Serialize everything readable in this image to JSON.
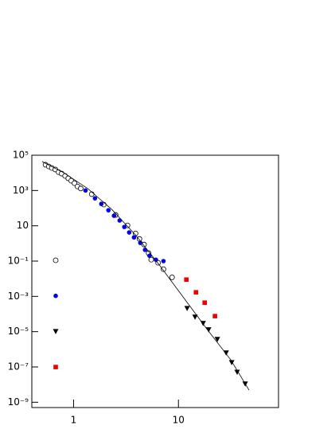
{
  "chart_data": {
    "type": "scatter",
    "xscale": "log",
    "yscale": "log",
    "xlim": [
      0.4,
      90
    ],
    "ylim": [
      5e-10,
      100000
    ],
    "xticks": [
      1,
      10
    ],
    "yticks": [
      {
        "value": 100000,
        "label": "10⁵"
      },
      {
        "value": 1000,
        "label": "10³"
      },
      10,
      {
        "value": 0.1,
        "label": "10⁻¹"
      },
      {
        "value": 0.001,
        "label": "10⁻³"
      },
      {
        "value": 1e-05,
        "label": "10⁻⁵"
      },
      {
        "value": 1e-07,
        "label": "10⁻⁷"
      },
      {
        "value": 1e-09,
        "label": "10⁻⁹"
      }
    ],
    "legend": "left",
    "series": [
      {
        "marker": "circle-open",
        "color": "#000000",
        "x": [
          0.54,
          0.58,
          0.62,
          0.67,
          0.72,
          0.77,
          0.83,
          0.89,
          0.95,
          1.02,
          1.09,
          1.17,
          1.49,
          1.94,
          2.52,
          3.27,
          3.9,
          4.25,
          4.7,
          5.2,
          5.5,
          6.4,
          7.2,
          8.7
        ],
        "values": [
          29000,
          23000,
          19000,
          15500,
          11000,
          9100,
          6700,
          4900,
          3600,
          2600,
          1700,
          1300,
          620,
          160,
          41,
          10.6,
          3.7,
          1.8,
          0.87,
          0.28,
          0.12,
          0.08,
          0.035,
          0.012
        ]
      },
      {
        "marker": "circle",
        "color": "#0000ee",
        "x": [
          1.3,
          1.6,
          1.84,
          2.15,
          2.43,
          2.75,
          3.05,
          3.39,
          3.77,
          4.33,
          4.8,
          5.3,
          6.1,
          7.2
        ],
        "values": [
          1000,
          360,
          175,
          76,
          37,
          20,
          8.6,
          4.2,
          2.2,
          1.07,
          0.43,
          0.2,
          0.12,
          0.1
        ]
      },
      {
        "marker": "triangle-down",
        "color": "#000000",
        "x": [
          12.1,
          14.4,
          17.2,
          19.4,
          23.5,
          28.5,
          32.2,
          36.3,
          43.3
        ],
        "values": [
          0.00021,
          6.8e-05,
          3e-05,
          1.3e-05,
          3.7e-06,
          6.3e-07,
          1.8e-07,
          5.1e-08,
          1.1e-08
        ]
      },
      {
        "marker": "square",
        "color": "#ee0000",
        "x": [
          11.9,
          14.7,
          17.8,
          22.3
        ],
        "values": [
          0.0089,
          0.0017,
          0.00044,
          7.6e-05
        ]
      },
      {
        "marker": "line",
        "color": "#000000",
        "x": [
          0.5,
          0.81,
          1.37,
          2.31,
          3.9,
          6.6,
          11.1,
          18.7,
          31.6,
          47.2
        ],
        "values": [
          44000,
          10000,
          1270,
          86,
          3.0,
          0.059,
          0.00091,
          1.4e-05,
          2.5e-07,
          4.8e-09
        ]
      }
    ]
  }
}
